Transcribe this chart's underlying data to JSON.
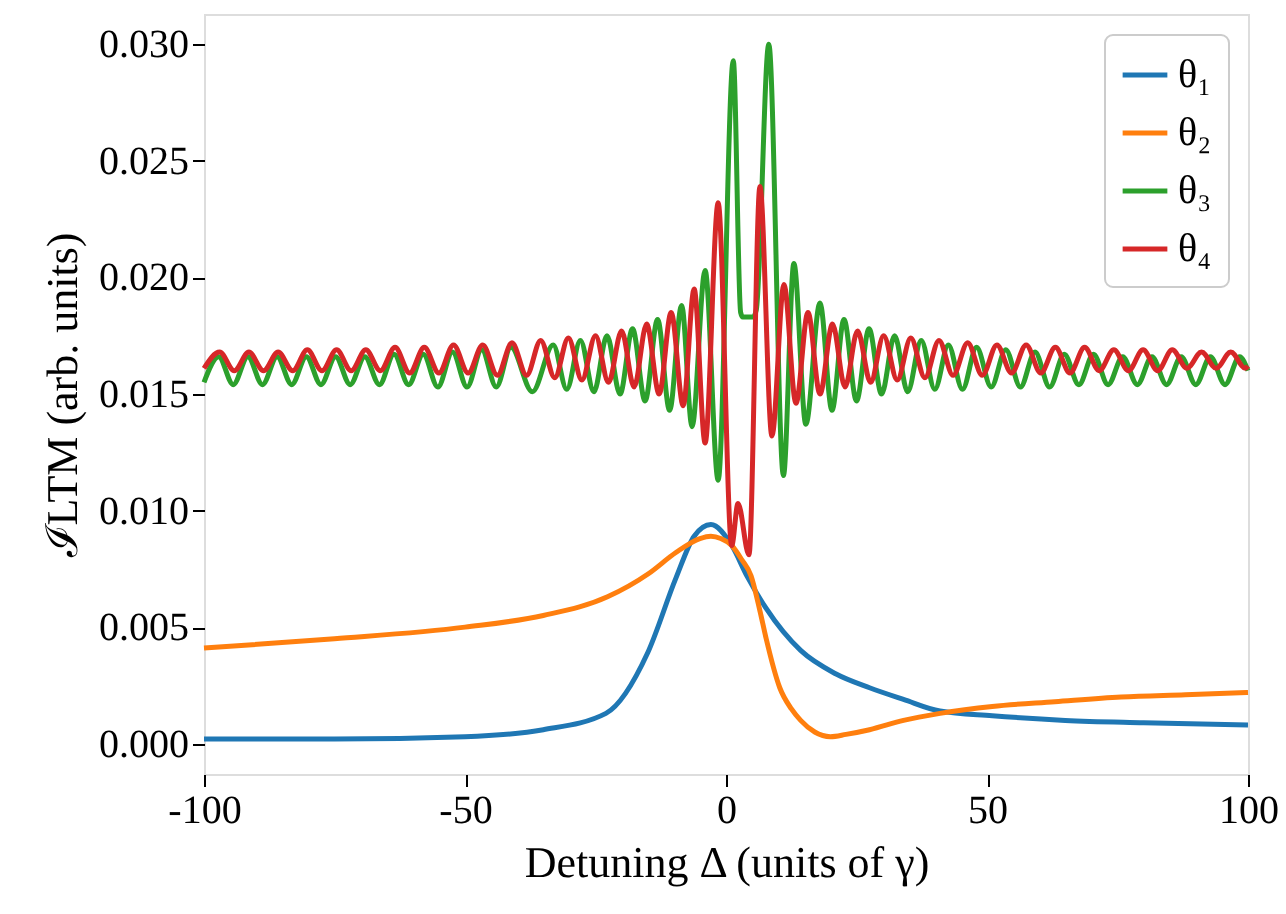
{
  "chart_data": {
    "type": "line",
    "xlabel": "Detuning Δ (units of γ)",
    "ylabel": "ℐLTM (arb. units)",
    "xlim": [
      -100,
      100
    ],
    "xticks": [
      -100,
      -50,
      0,
      50,
      100
    ],
    "ylim": [
      -0.0013,
      0.0313
    ],
    "yticks": [
      {
        "value": 0,
        "label": "0.000"
      },
      {
        "value": 0.005,
        "label": "0.005"
      },
      {
        "value": 0.01,
        "label": "0.010"
      },
      {
        "value": 0.015,
        "label": "0.015"
      },
      {
        "value": 0.02,
        "label": "0.020"
      },
      {
        "value": 0.025,
        "label": "0.025"
      },
      {
        "value": 0.03,
        "label": "0.030"
      }
    ],
    "grid": false,
    "legend": "top right",
    "marker": "none",
    "line_style": "solid",
    "series": [
      {
        "name": "θ₁",
        "color": "#1f77b4",
        "x": [
          -100,
          -75,
          -50,
          -35,
          -23,
          -15,
          -9.6,
          -6.1,
          -2.9,
          1.1,
          4,
          7.7,
          14.3,
          21,
          27.5,
          34,
          41,
          51,
          65,
          80,
          100
        ],
        "values": [
          0.0002,
          0.0002,
          0.0003,
          0.0006,
          0.0013,
          0.0039,
          0.0071,
          0.0089,
          0.0094,
          0.0085,
          0.0072,
          0.0058,
          0.004,
          0.003,
          0.0024,
          0.0019,
          0.0014,
          0.0012,
          0.001,
          0.0009,
          0.0008
        ]
      },
      {
        "name": "θ₂",
        "color": "#ff7f0e",
        "x": [
          -100,
          -75,
          -50,
          -35,
          -22.7,
          -14.8,
          -9.6,
          -5,
          -2.9,
          -1,
          1.1,
          3,
          4.8,
          6.5,
          7.7,
          10.3,
          12.5,
          14.3,
          17,
          20,
          23,
          27.5,
          34,
          41,
          51,
          63,
          75.7,
          88,
          100
        ],
        "values": [
          0.0041,
          0.0045,
          0.005,
          0.0055,
          0.0063,
          0.0073,
          0.0082,
          0.0088,
          0.0089,
          0.0088,
          0.0085,
          0.0079,
          0.0072,
          0.0057,
          0.0045,
          0.0024,
          0.0015,
          0.001,
          0.0005,
          0.0003,
          0.0004,
          0.0006,
          0.001,
          0.0013,
          0.0016,
          0.0018,
          0.002,
          0.0021,
          0.0022
        ]
      },
      {
        "name": "θ₃",
        "color": "#2ca02c",
        "x": [
          -100,
          -97.2,
          -94.4,
          -91.6,
          -88.8,
          -86,
          -83.2,
          -80.4,
          -77.6,
          -74.8,
          -72,
          -69.2,
          -66.4,
          -63.6,
          -60.8,
          -58,
          -55.2,
          -52.4,
          -49.6,
          -46.8,
          -44,
          -41.2,
          -37.1,
          -33.1,
          -30.5,
          -27.9,
          -25.3,
          -22.8,
          -20.3,
          -17.9,
          -15.5,
          -13.1,
          -10.8,
          -8.5,
          -6.5,
          -4,
          -1.5,
          1.4,
          2.8,
          3.2,
          5.2,
          5.8,
          8.2,
          11,
          13,
          15.3,
          18,
          20.3,
          22.6,
          25,
          27.4,
          29.8,
          32.3,
          34.8,
          37.4,
          40,
          42.6,
          45.3,
          48,
          50.8,
          53.6,
          56.4,
          59.2,
          62,
          64.8,
          67.6,
          70.4,
          73.2,
          76,
          78.8,
          81.6,
          84.4,
          87.2,
          90,
          92.8,
          95.6,
          98.4,
          100
        ],
        "values": [
          0.0155,
          0.0166,
          0.0154,
          0.0166,
          0.0154,
          0.0166,
          0.0154,
          0.0166,
          0.0154,
          0.0166,
          0.0154,
          0.0166,
          0.0154,
          0.0167,
          0.0154,
          0.0167,
          0.0153,
          0.0168,
          0.0153,
          0.0169,
          0.0153,
          0.017,
          0.0151,
          0.0171,
          0.0152,
          0.0173,
          0.0151,
          0.0175,
          0.015,
          0.0178,
          0.0147,
          0.0182,
          0.0143,
          0.0188,
          0.0136,
          0.0203,
          0.0113,
          0.0293,
          0.0185,
          0.0183,
          0.0183,
          0.0186,
          0.03,
          0.0115,
          0.0206,
          0.0137,
          0.0189,
          0.0143,
          0.0182,
          0.0147,
          0.0178,
          0.015,
          0.0175,
          0.0151,
          0.0173,
          0.0152,
          0.0171,
          0.0152,
          0.017,
          0.0153,
          0.0169,
          0.0153,
          0.0168,
          0.0153,
          0.0167,
          0.0154,
          0.0167,
          0.0154,
          0.0166,
          0.0154,
          0.0166,
          0.0154,
          0.0166,
          0.0154,
          0.0166,
          0.0154,
          0.0166,
          0.016
        ]
      },
      {
        "name": "θ₄",
        "color": "#d62728",
        "x": [
          -100,
          -97,
          -94.2,
          -91.4,
          -88.6,
          -85.8,
          -83,
          -80.2,
          -77.4,
          -74.6,
          -71.8,
          -69,
          -66.2,
          -63.4,
          -60.6,
          -57.8,
          -55,
          -52.2,
          -49.4,
          -46.6,
          -43.8,
          -41,
          -38.2,
          -35.5,
          -32.8,
          -30.2,
          -27.6,
          -25,
          -22.5,
          -20,
          -17.6,
          -15.2,
          -12.8,
          -10.5,
          -8.2,
          -6.1,
          -4,
          -1.5,
          1.1,
          2.3,
          4.4,
          6.5,
          8.8,
          11.1,
          13.4,
          15.7,
          18,
          20.4,
          22.8,
          25.2,
          27.7,
          30.2,
          32.8,
          35.4,
          38.1,
          40.8,
          43.5,
          46.3,
          49.1,
          51.9,
          54.7,
          57.5,
          60.3,
          63.1,
          65.9,
          68.7,
          71.5,
          74.3,
          77.1,
          79.9,
          82.7,
          85.5,
          88.3,
          91.1,
          93.9,
          96.7,
          99.5,
          100
        ],
        "values": [
          0.0161,
          0.0168,
          0.016,
          0.0168,
          0.016,
          0.0168,
          0.016,
          0.0169,
          0.016,
          0.0169,
          0.016,
          0.0169,
          0.016,
          0.017,
          0.0159,
          0.017,
          0.0159,
          0.0171,
          0.0159,
          0.0171,
          0.0158,
          0.0172,
          0.0158,
          0.0173,
          0.0157,
          0.0174,
          0.0156,
          0.0175,
          0.0155,
          0.0177,
          0.0153,
          0.018,
          0.015,
          0.0185,
          0.0145,
          0.0195,
          0.0129,
          0.0232,
          0.0085,
          0.0103,
          0.0081,
          0.0239,
          0.0132,
          0.0197,
          0.0146,
          0.0185,
          0.015,
          0.018,
          0.0153,
          0.0177,
          0.0155,
          0.0175,
          0.0156,
          0.0174,
          0.0157,
          0.0173,
          0.0158,
          0.0172,
          0.0158,
          0.0171,
          0.0159,
          0.0171,
          0.0159,
          0.017,
          0.0159,
          0.017,
          0.016,
          0.0169,
          0.016,
          0.0169,
          0.016,
          0.0169,
          0.0161,
          0.0168,
          0.0161,
          0.0168,
          0.0161,
          0.0162
        ]
      }
    ]
  }
}
